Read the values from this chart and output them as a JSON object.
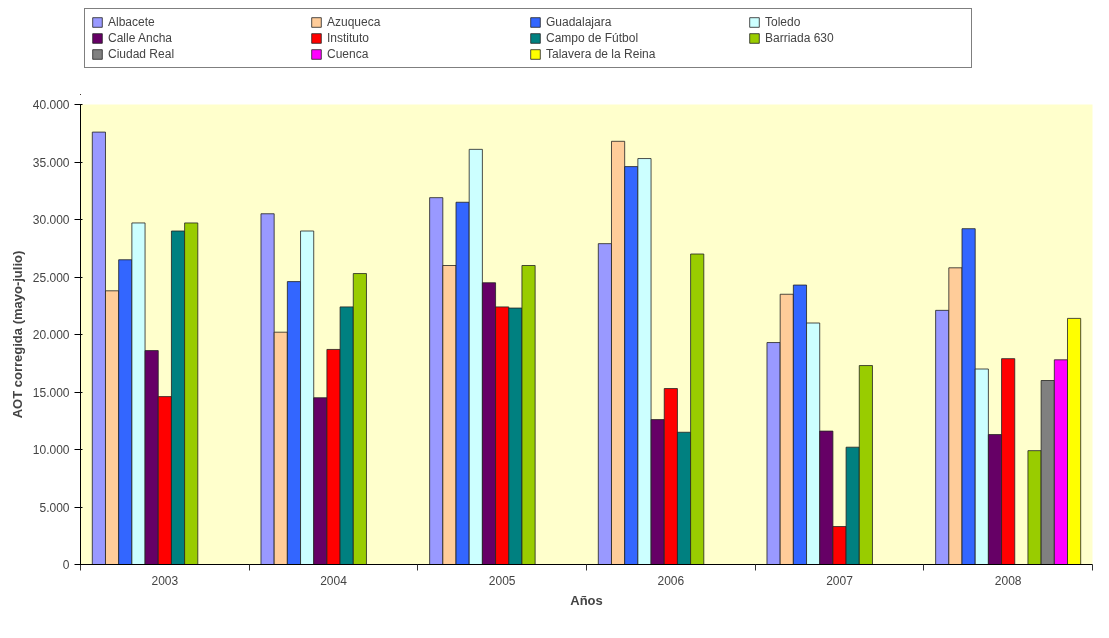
{
  "chart_data": {
    "type": "bar",
    "xlabel": "Años",
    "ylabel": "AOT corregida (mayo-julio)",
    "categories": [
      "2003",
      "2004",
      "2005",
      "2006",
      "2007",
      "2008"
    ],
    "series": [
      {
        "name": "Albacete",
        "color": "#9999ff",
        "values": [
          37600,
          30500,
          31900,
          27900,
          19300,
          22100
        ]
      },
      {
        "name": "Azuqueca",
        "color": "#ffcc99",
        "values": [
          23800,
          20200,
          26000,
          36800,
          23500,
          25800
        ]
      },
      {
        "name": "Guadalajara",
        "color": "#3366ff",
        "values": [
          26500,
          24600,
          31500,
          34600,
          24300,
          29200
        ]
      },
      {
        "name": "Toledo",
        "color": "#ccffff",
        "values": [
          29700,
          29000,
          36100,
          35300,
          21000,
          17000
        ]
      },
      {
        "name": "Calle Ancha",
        "color": "#660066",
        "values": [
          18600,
          14500,
          24500,
          12600,
          11600,
          11300
        ]
      },
      {
        "name": "Instituto",
        "color": "#ff0000",
        "values": [
          14600,
          18700,
          22400,
          15300,
          3300,
          17900
        ]
      },
      {
        "name": "Campo de Fútbol",
        "color": "#008080",
        "values": [
          29000,
          22400,
          22300,
          11500,
          10200,
          null
        ]
      },
      {
        "name": "Barriada 630",
        "color": "#99cc00",
        "values": [
          29700,
          25300,
          26000,
          27000,
          17300,
          9900
        ]
      },
      {
        "name": "Ciudad Real",
        "color": "#808080",
        "values": [
          null,
          null,
          null,
          null,
          null,
          16000
        ]
      },
      {
        "name": "Cuenca",
        "color": "#ff00ff",
        "values": [
          null,
          null,
          null,
          null,
          null,
          17800
        ]
      },
      {
        "name": "Talavera de la Reina",
        "color": "#ffff00",
        "values": [
          null,
          null,
          null,
          null,
          null,
          21400
        ]
      }
    ],
    "ylim": [
      0,
      40000
    ],
    "yticks": [
      {
        "value": 0,
        "label": "0"
      },
      {
        "value": 5000,
        "label": "5.000"
      },
      {
        "value": 10000,
        "label": "10.000"
      },
      {
        "value": 15000,
        "label": "15.000"
      },
      {
        "value": 20000,
        "label": "20.000"
      },
      {
        "value": 25000,
        "label": "25.000"
      },
      {
        "value": 30000,
        "label": "30.000"
      },
      {
        "value": 35000,
        "label": "35.000"
      },
      {
        "value": 40000,
        "label": "40.000"
      }
    ],
    "grid": false,
    "legend": "top"
  }
}
